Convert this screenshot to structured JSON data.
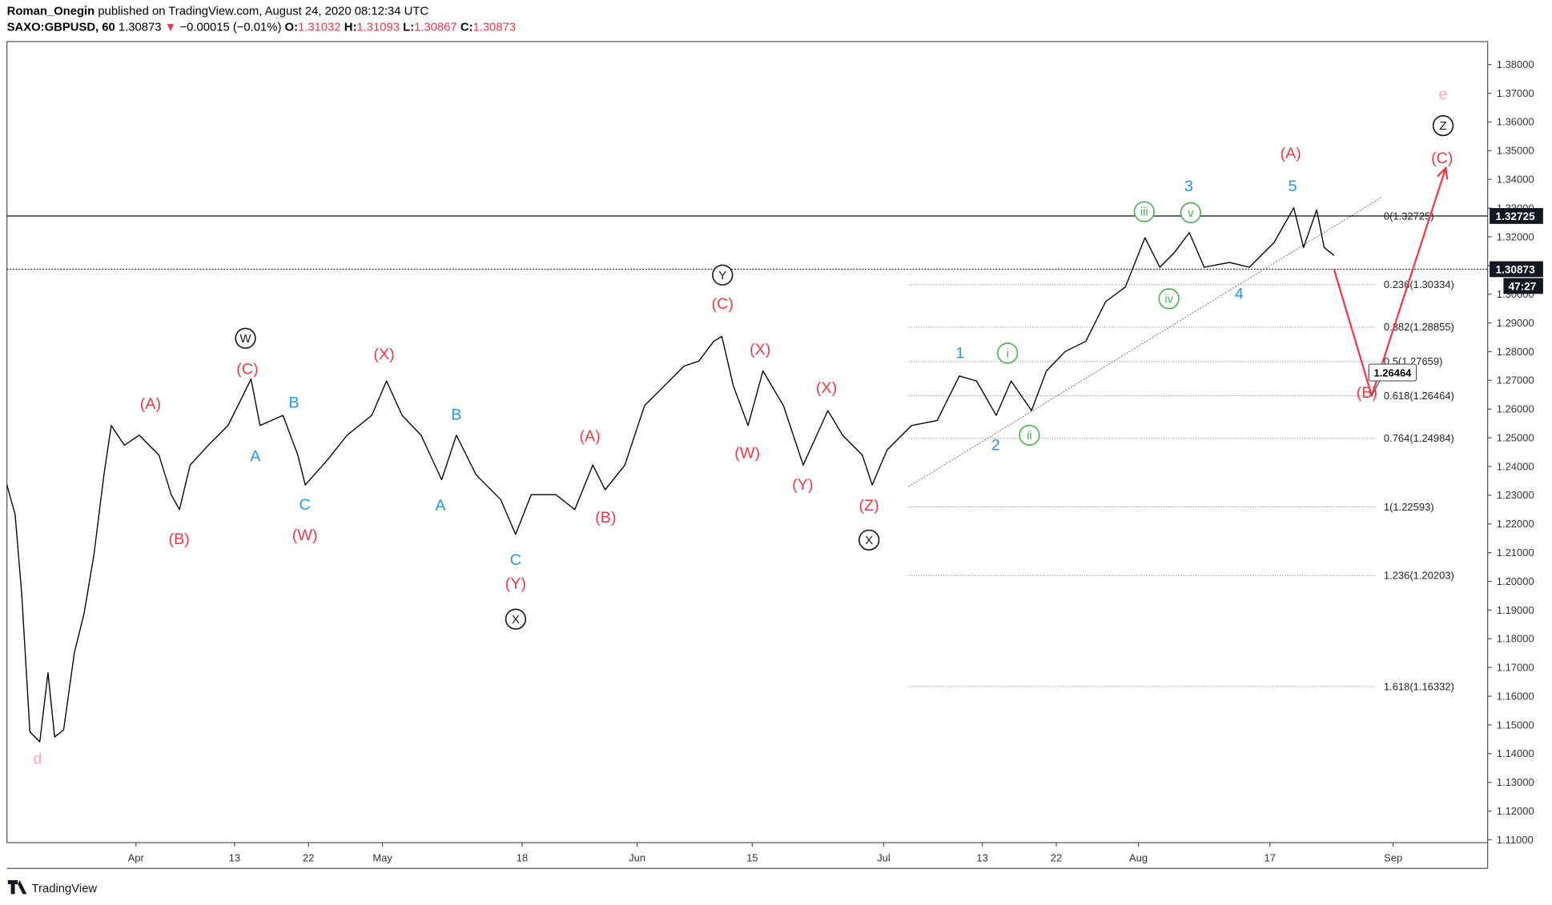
{
  "header": {
    "author": "Roman_Onegin",
    "published": "published on TradingView.com, August 24, 2020 08:12:34 UTC",
    "symbol": "SAXO:GBPUSD, 60",
    "last": "1.30873",
    "arrow": "▼",
    "change": "−0.00015 (−0.01%)",
    "o_key": "O:",
    "o": "1.31032",
    "h_key": "H:",
    "h": "1.31093",
    "l_key": "L:",
    "l": "1.30867",
    "c_key": "C:",
    "c": "1.30873"
  },
  "footer": {
    "brand": "TradingView"
  },
  "chart_data": {
    "type": "line",
    "xlim": [
      76.3,
      256.5
    ],
    "xticks": [
      {
        "value": 92,
        "label": "Apr"
      },
      {
        "value": 104,
        "label": "13"
      },
      {
        "value": 113,
        "label": "22"
      },
      {
        "value": 122,
        "label": "May"
      },
      {
        "value": 139,
        "label": "18"
      },
      {
        "value": 153,
        "label": "Jun"
      },
      {
        "value": 167,
        "label": "15"
      },
      {
        "value": 183,
        "label": "Jul"
      },
      {
        "value": 195,
        "label": "13"
      },
      {
        "value": 204,
        "label": "22"
      },
      {
        "value": 214,
        "label": "Aug"
      },
      {
        "value": 230,
        "label": "17"
      },
      {
        "value": 245,
        "label": "Sep"
      }
    ],
    "ylim": [
      1.109,
      1.388
    ],
    "yticks": [
      {
        "value": 1.11,
        "label": "1.11000"
      },
      {
        "value": 1.12,
        "label": "1.12000"
      },
      {
        "value": 1.13,
        "label": "1.13000"
      },
      {
        "value": 1.14,
        "label": "1.14000"
      },
      {
        "value": 1.15,
        "label": "1.15000"
      },
      {
        "value": 1.16,
        "label": "1.16000"
      },
      {
        "value": 1.17,
        "label": "1.17000"
      },
      {
        "value": 1.18,
        "label": "1.18000"
      },
      {
        "value": 1.19,
        "label": "1.19000"
      },
      {
        "value": 1.2,
        "label": "1.20000"
      },
      {
        "value": 1.21,
        "label": "1.21000"
      },
      {
        "value": 1.22,
        "label": "1.22000"
      },
      {
        "value": 1.23,
        "label": "1.23000"
      },
      {
        "value": 1.24,
        "label": "1.24000"
      },
      {
        "value": 1.25,
        "label": "1.25000"
      },
      {
        "value": 1.26,
        "label": "1.26000"
      },
      {
        "value": 1.27,
        "label": "1.27000"
      },
      {
        "value": 1.28,
        "label": "1.28000"
      },
      {
        "value": 1.29,
        "label": "1.29000"
      },
      {
        "value": 1.3,
        "label": "1.30000"
      },
      {
        "value": 1.31,
        "label": "1.31000"
      },
      {
        "value": 1.32,
        "label": "1.32000"
      },
      {
        "value": 1.33,
        "label": "1.33000"
      },
      {
        "value": 1.34,
        "label": "1.34000"
      },
      {
        "value": 1.35,
        "label": "1.35000"
      },
      {
        "value": 1.36,
        "label": "1.36000"
      },
      {
        "value": 1.37,
        "label": "1.37000"
      },
      {
        "value": 1.38,
        "label": "1.38000"
      }
    ],
    "series": [
      {
        "color": "#000000",
        "x": [
          76.3,
          77.3,
          78.1,
          79.1,
          80.3,
          81.3,
          82.1,
          83.2,
          84.5,
          85.7,
          86.9,
          88.1,
          89.0,
          90.6,
          92.4,
          94.8,
          96.3,
          97.3,
          98.6,
          100.8,
          103.2,
          105.0,
          106.0,
          107.1,
          109.9,
          111.7,
          112.6,
          115.3,
          117.7,
          120.7,
          122.5,
          124.4,
          126.7,
          129.2,
          131.0,
          133.4,
          136.4,
          138.2,
          140.1,
          143.1,
          145.4,
          147.6,
          149.1,
          151.5,
          153.9,
          156.3,
          158.7,
          160.5,
          162.3,
          163.3,
          164.7,
          166.5,
          168.3,
          170.8,
          173.2,
          176.2,
          178.0,
          180.4,
          181.6,
          183.4,
          186.4,
          189.5,
          192.2,
          194.3,
          196.7,
          198.5,
          201.0,
          202.8,
          205.1,
          207.6,
          210.0,
          212.4,
          214.8,
          216.6,
          218.4,
          220.2,
          222.0,
          225.1,
          227.5,
          230.5,
          232.9,
          234.1,
          235.7,
          236.6,
          237.8
        ],
        "values": [
          1.2336,
          1.2233,
          1.1958,
          1.1476,
          1.1441,
          1.1682,
          1.1458,
          1.1483,
          1.1751,
          1.1889,
          1.2095,
          1.2371,
          1.2543,
          1.2474,
          1.2509,
          1.244,
          1.2302,
          1.225,
          1.2405,
          1.2474,
          1.2543,
          1.2646,
          1.2705,
          1.2543,
          1.2578,
          1.244,
          1.2336,
          1.2423,
          1.2509,
          1.2578,
          1.2698,
          1.2578,
          1.2509,
          1.2354,
          1.2509,
          1.2371,
          1.2285,
          1.2164,
          1.2302,
          1.2302,
          1.225,
          1.2405,
          1.2319,
          1.2405,
          1.2612,
          1.2681,
          1.275,
          1.2767,
          1.2836,
          1.2853,
          1.2681,
          1.2543,
          1.2733,
          1.2612,
          1.2405,
          1.2595,
          1.2509,
          1.244,
          1.2336,
          1.2457,
          1.2543,
          1.256,
          1.2715,
          1.2698,
          1.2578,
          1.2698,
          1.2595,
          1.2733,
          1.2801,
          1.2836,
          1.2974,
          1.3025,
          1.3197,
          1.3094,
          1.3146,
          1.3215,
          1.3094,
          1.3111,
          1.3094,
          1.318,
          1.3301,
          1.3163,
          1.3294,
          1.3163,
          1.3135
        ]
      },
      {
        "color": "#f23645",
        "x": [
          237.8,
          242.4,
          251.4
        ],
        "values": [
          1.3087,
          1.26464,
          1.344
        ]
      }
    ],
    "price_lines": [
      1.32725,
      1.30873
    ],
    "countdown": "47:27",
    "target_label": "1.26464",
    "fib": [
      {
        "value": 1.32725,
        "label": "0(1.32725)"
      },
      {
        "value": 1.30334,
        "label": "0.236(1.30334)"
      },
      {
        "value": 1.28855,
        "label": "0.382(1.28855)"
      },
      {
        "value": 1.27659,
        "label": "0.5(1.27659)"
      },
      {
        "value": 1.26464,
        "label": "0.618(1.26464)"
      },
      {
        "value": 1.24984,
        "label": "0.764(1.24984)"
      },
      {
        "value": 1.22593,
        "label": "1(1.22593)"
      },
      {
        "value": 1.20203,
        "label": "1.236(1.20203)"
      },
      {
        "value": 1.16332,
        "label": "1.618(1.16332)"
      }
    ],
    "annotations": [
      "d",
      "(A)",
      "(B)",
      "W",
      "(C)",
      "A",
      "B",
      "C",
      "(W)",
      "(X)",
      "B",
      "A",
      "C",
      "(Y)",
      "X",
      "(A)",
      "(B)",
      "Y",
      "(C)",
      "(X)",
      "(W)",
      "(Y)",
      "(X)",
      "(Z)",
      "X",
      "1",
      "i",
      "2",
      "ii",
      "iii",
      "v",
      "iv",
      "3",
      "4",
      "5",
      "(A)",
      "e",
      "Z",
      "(C)",
      "(B)"
    ]
  }
}
